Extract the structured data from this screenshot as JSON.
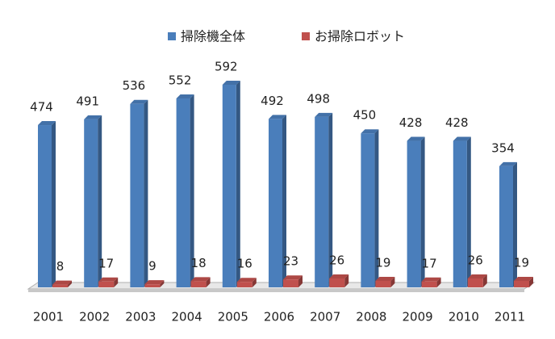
{
  "chart_data": {
    "type": "bar",
    "categories": [
      "2001",
      "2002",
      "2003",
      "2004",
      "2005",
      "2006",
      "2007",
      "2008",
      "2009",
      "2010",
      "2011"
    ],
    "series": [
      {
        "name": "掃除機全体",
        "color": "#4a7ebb",
        "values": [
          474,
          491,
          536,
          552,
          592,
          492,
          498,
          450,
          428,
          428,
          354
        ]
      },
      {
        "name": "お掃除ロボット",
        "color": "#c0504d",
        "values": [
          8,
          17,
          9,
          18,
          16,
          23,
          26,
          19,
          17,
          26,
          19
        ]
      }
    ]
  }
}
